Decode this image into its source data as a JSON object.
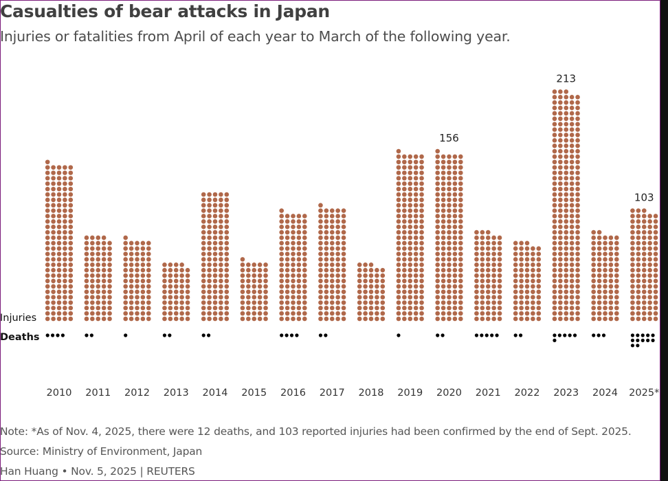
{
  "title": "Casualties of bear attacks in Japan",
  "subtitle": "Injuries or fatalities from April of each year to March of the following year.",
  "row_labels": {
    "injuries": "Injuries",
    "deaths": "Deaths"
  },
  "colors": {
    "injury": "#b0684a",
    "death": "#000000"
  },
  "chart_data": {
    "type": "bar",
    "title": "Casualties of bear attacks in Japan",
    "subtitle": "Injuries or fatalities from April of each year to March of the following year.",
    "xlabel": "",
    "ylabel": "",
    "unit_per_dot": 1,
    "categories": [
      "2010",
      "2011",
      "2012",
      "2013",
      "2014",
      "2015",
      "2016",
      "2017",
      "2018",
      "2019",
      "2020",
      "2021",
      "2022",
      "2023",
      "2024",
      "2025*"
    ],
    "series": [
      {
        "name": "Injuries",
        "values": [
          146,
          79,
          76,
          54,
          120,
          56,
          101,
          106,
          53,
          156,
          156,
          83,
          73,
          213,
          82,
          103
        ]
      },
      {
        "name": "Deaths",
        "values": [
          4,
          2,
          1,
          2,
          2,
          0,
          4,
          2,
          0,
          1,
          2,
          5,
          2,
          6,
          3,
          12
        ]
      }
    ],
    "data_labels": [
      {
        "category": "2020",
        "text": "156"
      },
      {
        "category": "2023",
        "text": "213"
      },
      {
        "category": "2025*",
        "text": "103"
      }
    ],
    "grid": false
  },
  "footer": {
    "note": "Note: *As of Nov. 4, 2025, there were 12 deaths, and 103 reported injuries had been confirmed by the end of Sept. 2025.",
    "source": "Source: Ministry of Environment, Japan",
    "credit": "Han Huang • Nov. 5, 2025 | REUTERS"
  }
}
